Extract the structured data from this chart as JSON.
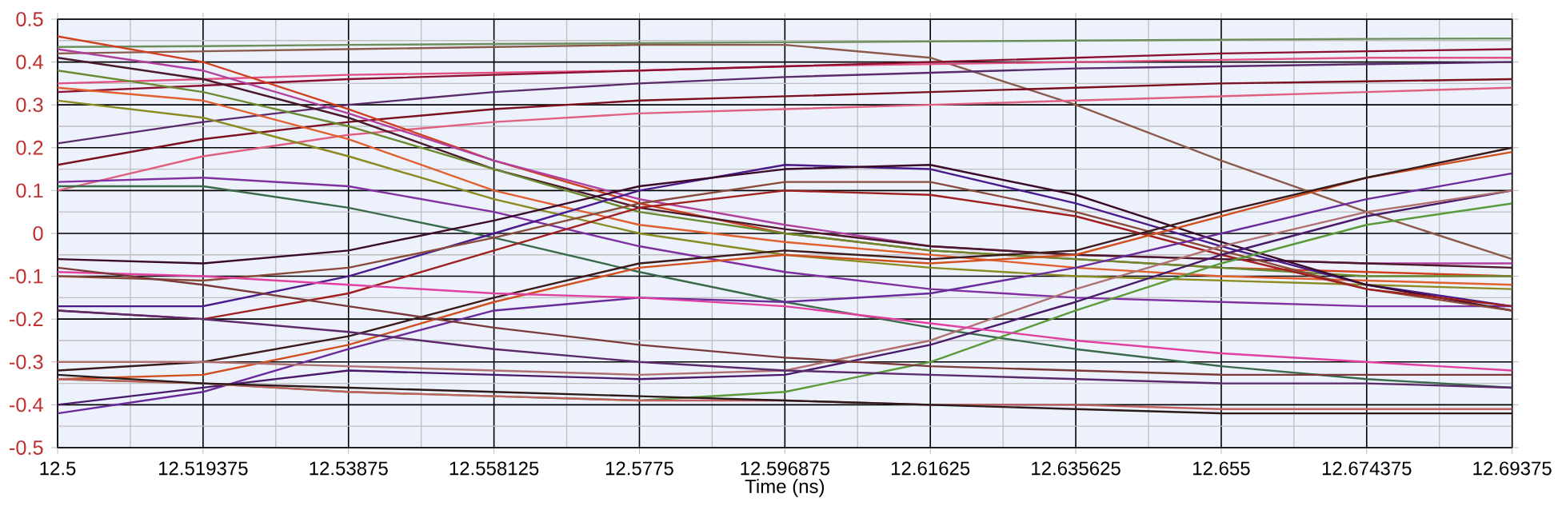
{
  "chart_data": {
    "type": "line",
    "xlabel": "Time (ns)",
    "x": [
      12.5,
      12.519375,
      12.53875,
      12.558125,
      12.5775,
      12.596875,
      12.61625,
      12.635625,
      12.655,
      12.674375,
      12.69375
    ],
    "xlim": [
      12.5,
      12.69375
    ],
    "xticks": [
      12.5,
      12.519375,
      12.53875,
      12.558125,
      12.5775,
      12.596875,
      12.61625,
      12.635625,
      12.655,
      12.674375,
      12.69375
    ],
    "ylim": [
      -0.5,
      0.5
    ],
    "yticks": [
      -0.5,
      -0.4,
      -0.3,
      -0.2,
      -0.1,
      0,
      0.1,
      0.2,
      0.3,
      0.4,
      0.5
    ],
    "grid": true,
    "marker": "none",
    "line_style": "solid",
    "series": [
      {
        "color": "#6b8e5a",
        "values": [
          0.435,
          0.437,
          0.44,
          0.442,
          0.444,
          0.446,
          0.448,
          0.45,
          0.452,
          0.454,
          0.455
        ]
      },
      {
        "color": "#8b5a4a",
        "values": [
          0.42,
          0.425,
          0.43,
          0.435,
          0.44,
          0.44,
          0.41,
          0.3,
          0.17,
          0.05,
          -0.06
        ]
      },
      {
        "color": "#e05080",
        "values": [
          0.35,
          0.36,
          0.37,
          0.375,
          0.38,
          0.39,
          0.395,
          0.4,
          0.405,
          0.41,
          0.41
        ]
      },
      {
        "color": "#8b1030",
        "values": [
          0.33,
          0.345,
          0.36,
          0.37,
          0.38,
          0.39,
          0.4,
          0.41,
          0.42,
          0.425,
          0.43
        ]
      },
      {
        "color": "#5a2a6a",
        "values": [
          0.21,
          0.26,
          0.3,
          0.33,
          0.35,
          0.365,
          0.375,
          0.385,
          0.39,
          0.395,
          0.4
        ]
      },
      {
        "color": "#7a1020",
        "values": [
          0.16,
          0.22,
          0.26,
          0.29,
          0.31,
          0.32,
          0.33,
          0.34,
          0.35,
          0.355,
          0.36
        ]
      },
      {
        "color": "#e06080",
        "values": [
          0.1,
          0.18,
          0.23,
          0.26,
          0.28,
          0.29,
          0.3,
          0.31,
          0.32,
          0.33,
          0.34
        ]
      },
      {
        "color": "#d04020",
        "values": [
          0.46,
          0.4,
          0.29,
          0.17,
          0.07,
          0,
          -0.04,
          -0.06,
          -0.08,
          -0.09,
          -0.1
        ]
      },
      {
        "color": "#b040a0",
        "values": [
          0.43,
          0.38,
          0.28,
          0.17,
          0.08,
          0.02,
          -0.03,
          -0.05,
          -0.06,
          -0.07,
          -0.07
        ]
      },
      {
        "color": "#4a1a2a",
        "values": [
          0.41,
          0.36,
          0.27,
          0.15,
          0.06,
          0.01,
          -0.03,
          -0.05,
          -0.06,
          -0.07,
          -0.08
        ]
      },
      {
        "color": "#6a8a30",
        "values": [
          0.38,
          0.33,
          0.25,
          0.15,
          0.05,
          0,
          -0.04,
          -0.06,
          -0.08,
          -0.1,
          -0.1
        ]
      },
      {
        "color": "#e06030",
        "values": [
          0.34,
          0.31,
          0.22,
          0.1,
          0.02,
          -0.02,
          -0.05,
          -0.08,
          -0.1,
          -0.11,
          -0.12
        ]
      },
      {
        "color": "#8a8a20",
        "values": [
          0.31,
          0.27,
          0.18,
          0.08,
          0,
          -0.05,
          -0.08,
          -0.1,
          -0.11,
          -0.12,
          -0.13
        ]
      },
      {
        "color": "#8030a0",
        "values": [
          0.12,
          0.13,
          0.11,
          0.05,
          -0.03,
          -0.09,
          -0.13,
          -0.15,
          -0.16,
          -0.17,
          -0.17
        ]
      },
      {
        "color": "#3a6a4a",
        "values": [
          0.11,
          0.11,
          0.06,
          -0.01,
          -0.09,
          -0.16,
          -0.22,
          -0.27,
          -0.31,
          -0.34,
          -0.36
        ]
      },
      {
        "color": "#4a1a8a",
        "values": [
          -0.17,
          -0.17,
          -0.1,
          0,
          0.1,
          0.16,
          0.15,
          0.07,
          -0.03,
          -0.12,
          -0.17
        ]
      },
      {
        "color": "#3a0a2a",
        "values": [
          -0.06,
          -0.07,
          -0.04,
          0.03,
          0.11,
          0.15,
          0.16,
          0.09,
          -0.02,
          -0.12,
          -0.18
        ]
      },
      {
        "color": "#8a4a3a",
        "values": [
          -0.1,
          -0.11,
          -0.08,
          -0.01,
          0.07,
          0.12,
          0.12,
          0.05,
          -0.04,
          -0.13,
          -0.18
        ]
      },
      {
        "color": "#a02020",
        "values": [
          -0.18,
          -0.2,
          -0.14,
          -0.04,
          0.06,
          0.1,
          0.09,
          0.04,
          -0.05,
          -0.13,
          -0.17
        ]
      },
      {
        "color": "#d05020",
        "values": [
          -0.34,
          -0.33,
          -0.26,
          -0.16,
          -0.08,
          -0.05,
          -0.07,
          -0.05,
          0.04,
          0.13,
          0.19
        ]
      },
      {
        "color": "#3a1a1a",
        "values": [
          -0.32,
          -0.3,
          -0.24,
          -0.15,
          -0.07,
          -0.04,
          -0.06,
          -0.04,
          0.05,
          0.13,
          0.2
        ]
      },
      {
        "color": "#6a2a9a",
        "values": [
          -0.42,
          -0.37,
          -0.27,
          -0.18,
          -0.15,
          -0.16,
          -0.14,
          -0.08,
          0,
          0.08,
          0.14
        ]
      },
      {
        "color": "#4a1a6a",
        "values": [
          -0.4,
          -0.36,
          -0.32,
          -0.33,
          -0.34,
          -0.33,
          -0.26,
          -0.16,
          -0.05,
          0.04,
          0.1
        ]
      },
      {
        "color": "#5a9a3a",
        "values": [
          -0.34,
          -0.35,
          -0.37,
          -0.38,
          -0.39,
          -0.37,
          -0.3,
          -0.18,
          -0.07,
          0.02,
          0.07
        ]
      },
      {
        "color": "#b07070",
        "values": [
          -0.3,
          -0.3,
          -0.31,
          -0.32,
          -0.33,
          -0.32,
          -0.25,
          -0.13,
          -0.03,
          0.05,
          0.1
        ]
      },
      {
        "color": "#5a2a6a",
        "values": [
          -0.18,
          -0.2,
          -0.23,
          -0.27,
          -0.3,
          -0.32,
          -0.33,
          -0.34,
          -0.35,
          -0.35,
          -0.36
        ]
      },
      {
        "color": "#e040a0",
        "values": [
          -0.09,
          -0.1,
          -0.12,
          -0.14,
          -0.15,
          -0.17,
          -0.21,
          -0.25,
          -0.28,
          -0.3,
          -0.32
        ]
      },
      {
        "color": "#7a3a3a",
        "values": [
          -0.08,
          -0.12,
          -0.17,
          -0.22,
          -0.26,
          -0.29,
          -0.31,
          -0.32,
          -0.33,
          -0.33,
          -0.33
        ]
      },
      {
        "color": "#c06060",
        "values": [
          -0.34,
          -0.35,
          -0.37,
          -0.38,
          -0.39,
          -0.39,
          -0.4,
          -0.4,
          -0.41,
          -0.41,
          -0.41
        ]
      },
      {
        "color": "#2a1a1a",
        "values": [
          -0.33,
          -0.35,
          -0.36,
          -0.37,
          -0.38,
          -0.39,
          -0.4,
          -0.41,
          -0.42,
          -0.42,
          -0.42
        ]
      }
    ]
  }
}
